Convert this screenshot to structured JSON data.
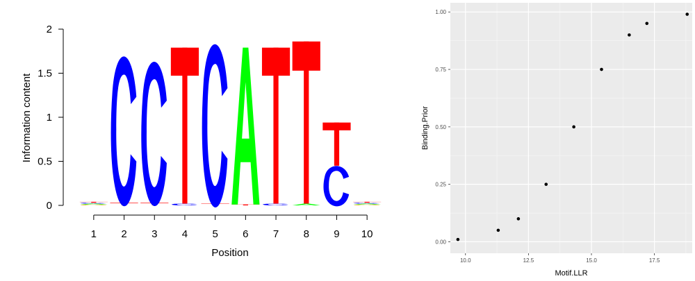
{
  "chart_data": [
    {
      "type": "sequence-logo",
      "xlabel": "Position",
      "ylabel": "Information content",
      "ylim": [
        0,
        2
      ],
      "y_ticks": [
        "0",
        "0.5",
        "1",
        "1.5",
        "2"
      ],
      "positions": [
        "1",
        "2",
        "3",
        "4",
        "5",
        "6",
        "7",
        "8",
        "9",
        "10"
      ],
      "colors": {
        "A": "#00ff00",
        "C": "#0000ff",
        "G": "#ffa500",
        "T": "#ff0000"
      },
      "columns": [
        {
          "stack": [
            {
              "letter": "G",
              "ic": 0.01
            },
            {
              "letter": "A",
              "ic": 0.01
            },
            {
              "letter": "C",
              "ic": 0.01
            },
            {
              "letter": "T",
              "ic": 0.01
            }
          ]
        },
        {
          "stack": [
            {
              "letter": "T",
              "ic": 0.03
            },
            {
              "letter": "C",
              "ic": 1.67
            }
          ]
        },
        {
          "stack": [
            {
              "letter": "T",
              "ic": 0.03
            },
            {
              "letter": "C",
              "ic": 1.61
            }
          ]
        },
        {
          "stack": [
            {
              "letter": "C",
              "ic": 0.02
            },
            {
              "letter": "T",
              "ic": 1.77
            }
          ]
        },
        {
          "stack": [
            {
              "letter": "T",
              "ic": 0.02
            },
            {
              "letter": "C",
              "ic": 1.82
            }
          ]
        },
        {
          "stack": [
            {
              "letter": "T",
              "ic": 0.01
            },
            {
              "letter": "A",
              "ic": 1.78
            }
          ]
        },
        {
          "stack": [
            {
              "letter": "C",
              "ic": 0.02
            },
            {
              "letter": "T",
              "ic": 1.77
            }
          ]
        },
        {
          "stack": [
            {
              "letter": "A",
              "ic": 0.02
            },
            {
              "letter": "T",
              "ic": 1.84
            }
          ]
        },
        {
          "stack": [
            {
              "letter": "C",
              "ic": 0.45
            },
            {
              "letter": "T",
              "ic": 0.49
            }
          ]
        },
        {
          "stack": [
            {
              "letter": "G",
              "ic": 0.01
            },
            {
              "letter": "A",
              "ic": 0.01
            },
            {
              "letter": "C",
              "ic": 0.01
            },
            {
              "letter": "T",
              "ic": 0.01
            }
          ]
        }
      ]
    },
    {
      "type": "scatter",
      "xlabel": "Motif.LLR",
      "ylabel": "Binding.Prior",
      "xlim": [
        9.4,
        19.0
      ],
      "ylim": [
        -0.05,
        1.04
      ],
      "x_ticks": [
        "10.0",
        "12.5",
        "15.0",
        "17.5"
      ],
      "y_ticks": [
        "0.00",
        "0.25",
        "0.50",
        "0.75",
        "1.00"
      ],
      "points": [
        {
          "x": 9.7,
          "y": 0.01
        },
        {
          "x": 11.3,
          "y": 0.05
        },
        {
          "x": 12.1,
          "y": 0.1
        },
        {
          "x": 13.2,
          "y": 0.25
        },
        {
          "x": 14.3,
          "y": 0.5
        },
        {
          "x": 15.4,
          "y": 0.75
        },
        {
          "x": 16.5,
          "y": 0.9
        },
        {
          "x": 17.2,
          "y": 0.95
        },
        {
          "x": 18.8,
          "y": 0.99
        }
      ],
      "panel_color": "#ebebeb",
      "grid": true
    }
  ]
}
